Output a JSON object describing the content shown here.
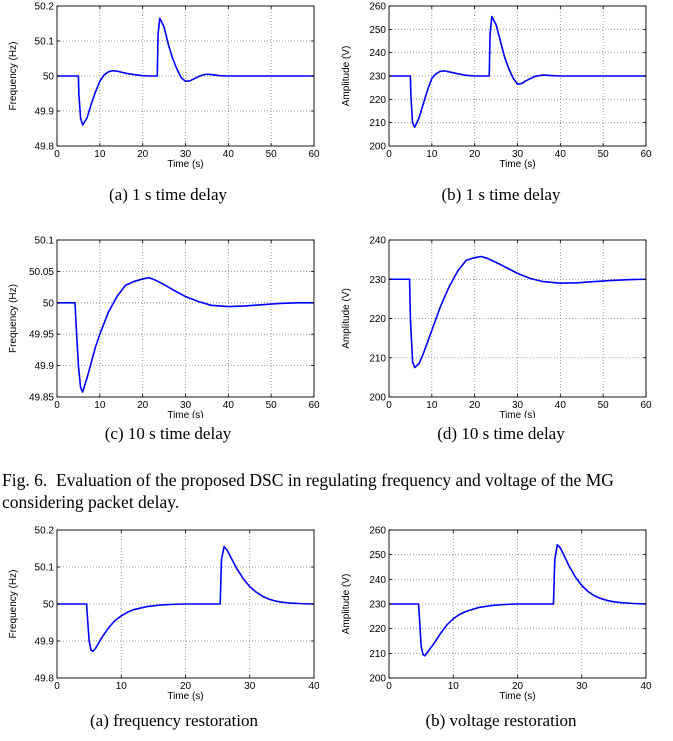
{
  "figure": {
    "caption_label": "Fig. 6.",
    "caption_text": "Evaluation of the proposed DSC in regulating frequency and voltage of the MG considering packet delay."
  },
  "colors": {
    "line": "#0000ff",
    "grid": "#808080",
    "axis": "#000000"
  },
  "chart_data": [
    {
      "type": "line",
      "subcaption": "(a)  1 s time delay",
      "xlabel": "Time (s)",
      "ylabel": "Frequency (Hz)",
      "xlim": [
        0,
        60
      ],
      "ylim": [
        49.8,
        50.2
      ],
      "xticks": [
        0,
        10,
        20,
        30,
        40,
        50,
        60
      ],
      "yticks": [
        49.8,
        49.9,
        50,
        50.1,
        50.2
      ],
      "ytick_labels": [
        "49.8",
        "49.9",
        "50",
        "50.1",
        "50.2"
      ],
      "grid": true,
      "series": [
        {
          "x": [
            0,
            5,
            5.1,
            5.5,
            6,
            7,
            8,
            9,
            10,
            11,
            12,
            13,
            14,
            15,
            16,
            18,
            20,
            22,
            23.4,
            23.6,
            24,
            25,
            26,
            27,
            28,
            29,
            30,
            31,
            32,
            33,
            34,
            35,
            36,
            38,
            40,
            45,
            50,
            55,
            60
          ],
          "y": [
            50,
            50,
            49.95,
            49.88,
            49.86,
            49.88,
            49.92,
            49.955,
            49.985,
            50.003,
            50.012,
            50.015,
            50.014,
            50.011,
            50.008,
            50.004,
            50.001,
            50,
            50,
            50.12,
            50.165,
            50.14,
            50.09,
            50.05,
            50.02,
            49.995,
            49.985,
            49.986,
            49.992,
            49.998,
            50.003,
            50.005,
            50.004,
            50.001,
            50,
            50,
            50,
            50,
            50
          ]
        }
      ]
    },
    {
      "type": "line",
      "subcaption": "(b)  1 s time delay",
      "xlabel": "Time (s)",
      "ylabel": "Amplitude (V)",
      "xlim": [
        0,
        60
      ],
      "ylim": [
        200,
        260
      ],
      "xticks": [
        0,
        10,
        20,
        30,
        40,
        50,
        60
      ],
      "yticks": [
        200,
        210,
        220,
        230,
        240,
        250,
        260
      ],
      "ytick_labels": [
        "200",
        "210",
        "220",
        "230",
        "240",
        "250",
        "260"
      ],
      "grid": true,
      "series": [
        {
          "x": [
            0,
            5,
            5.1,
            5.5,
            6,
            7,
            8,
            9,
            10,
            11,
            12,
            13,
            14,
            16,
            18,
            20,
            22,
            23.4,
            23.6,
            24,
            25,
            26,
            27,
            28,
            29,
            30,
            31,
            32,
            34,
            36,
            38,
            40,
            45,
            50,
            55,
            60
          ],
          "y": [
            230,
            230,
            222,
            210,
            208,
            212,
            218,
            224,
            229,
            231,
            232,
            232.2,
            231.8,
            231,
            230.3,
            230,
            230,
            230,
            248,
            255.5,
            252,
            245,
            238,
            233,
            229,
            226.5,
            226.8,
            228,
            229.8,
            230.4,
            230.2,
            230,
            230,
            230,
            230,
            230
          ]
        }
      ]
    },
    {
      "type": "line",
      "subcaption": "(c)  10 s time delay",
      "xlabel": "Time (s)",
      "ylabel": "Frequency (Hz)",
      "xlim": [
        0,
        60
      ],
      "ylim": [
        49.85,
        50.1
      ],
      "xticks": [
        0,
        10,
        20,
        30,
        40,
        50,
        60
      ],
      "yticks": [
        49.85,
        49.9,
        49.95,
        50,
        50.05,
        50.1
      ],
      "ytick_labels": [
        "49.85",
        "49.9",
        "49.95",
        "50",
        "50.05",
        "50.1"
      ],
      "grid": true,
      "series": [
        {
          "x": [
            0,
            4.2,
            4.5,
            5,
            5.5,
            6,
            7,
            8,
            9,
            10,
            12,
            14,
            16,
            18,
            20,
            21.5,
            23,
            25,
            27,
            30,
            33,
            36,
            40,
            44,
            48,
            52,
            56,
            60
          ],
          "y": [
            50,
            50,
            49.96,
            49.9,
            49.865,
            49.858,
            49.88,
            49.905,
            49.93,
            49.95,
            49.985,
            50.01,
            50.028,
            50.034,
            50.038,
            50.04,
            50.036,
            50.029,
            50.021,
            50.01,
            50.002,
            49.996,
            49.994,
            49.995,
            49.997,
            49.999,
            50,
            50
          ]
        }
      ]
    },
    {
      "type": "line",
      "subcaption": "(d)  10 s time delay",
      "xlabel": "Time (s)",
      "ylabel": "Amplitude (V)",
      "xlim": [
        0,
        60
      ],
      "ylim": [
        200,
        240
      ],
      "xticks": [
        0,
        10,
        20,
        30,
        40,
        50,
        60
      ],
      "yticks": [
        200,
        210,
        220,
        230,
        240
      ],
      "ytick_labels": [
        "200",
        "210",
        "220",
        "230",
        "240"
      ],
      "grid": true,
      "series": [
        {
          "x": [
            0,
            4.8,
            5,
            5.5,
            6,
            7,
            8,
            9,
            10,
            12,
            14,
            16,
            18,
            20,
            21.5,
            23,
            25,
            27,
            30,
            33,
            36,
            40,
            44,
            48,
            52,
            56,
            60
          ],
          "y": [
            230,
            230,
            220,
            209,
            207.5,
            208.5,
            211,
            214,
            217,
            223,
            228,
            232,
            234.8,
            235.5,
            235.8,
            235.3,
            234.3,
            233.2,
            231.5,
            230.2,
            229.4,
            229,
            229.1,
            229.4,
            229.7,
            229.9,
            230
          ]
        }
      ]
    },
    {
      "type": "line",
      "subcaption": "(a)  frequency restoration",
      "xlabel": "Time (s)",
      "ylabel": "Frequency (Hz)",
      "xlim": [
        0,
        40
      ],
      "ylim": [
        49.8,
        50.2
      ],
      "xticks": [
        0,
        10,
        20,
        30,
        40
      ],
      "yticks": [
        49.8,
        49.9,
        50,
        50.1,
        50.2
      ],
      "ytick_labels": [
        "49.8",
        "49.9",
        "50",
        "50.1",
        "50.2"
      ],
      "grid": true,
      "series": [
        {
          "x": [
            0,
            4.6,
            4.8,
            5,
            5.3,
            5.6,
            6,
            7,
            8,
            9,
            10,
            11,
            12,
            14,
            16,
            18,
            20,
            22,
            25.4,
            25.6,
            26,
            26.5,
            27,
            28,
            29,
            30,
            31,
            32,
            33,
            34,
            35,
            36,
            38,
            40
          ],
          "y": [
            50,
            50,
            49.95,
            49.9,
            49.875,
            49.872,
            49.88,
            49.91,
            49.935,
            49.955,
            49.968,
            49.978,
            49.985,
            49.993,
            49.997,
            49.999,
            50,
            50,
            50,
            50.12,
            50.155,
            50.145,
            50.128,
            50.095,
            50.068,
            50.047,
            50.032,
            50.021,
            50.013,
            50.008,
            50.005,
            50.003,
            50.001,
            50
          ]
        }
      ]
    },
    {
      "type": "line",
      "subcaption": "(b)  voltage restoration",
      "xlabel": "Time (s)",
      "ylabel": "Amplitude (V)",
      "xlim": [
        0,
        40
      ],
      "ylim": [
        200,
        260
      ],
      "xticks": [
        0,
        10,
        20,
        30,
        40
      ],
      "yticks": [
        200,
        210,
        220,
        230,
        240,
        250,
        260
      ],
      "ytick_labels": [
        "200",
        "210",
        "220",
        "230",
        "240",
        "250",
        "260"
      ],
      "grid": true,
      "series": [
        {
          "x": [
            0,
            4.6,
            4.8,
            5,
            5.3,
            5.6,
            6,
            7,
            8,
            9,
            10,
            11,
            12,
            14,
            16,
            18,
            20,
            22,
            25.6,
            25.8,
            26.2,
            26.6,
            27,
            28,
            29,
            30,
            31,
            32,
            33,
            34,
            35,
            36,
            38,
            40
          ],
          "y": [
            230,
            230,
            222,
            213,
            209.5,
            209,
            210.5,
            214,
            218,
            221.5,
            224,
            225.8,
            227,
            228.6,
            229.4,
            229.8,
            230,
            230,
            230,
            248,
            254,
            253,
            251,
            245.5,
            241,
            237.5,
            235,
            233.3,
            232.2,
            231.4,
            230.9,
            230.6,
            230.2,
            230
          ]
        }
      ]
    }
  ]
}
